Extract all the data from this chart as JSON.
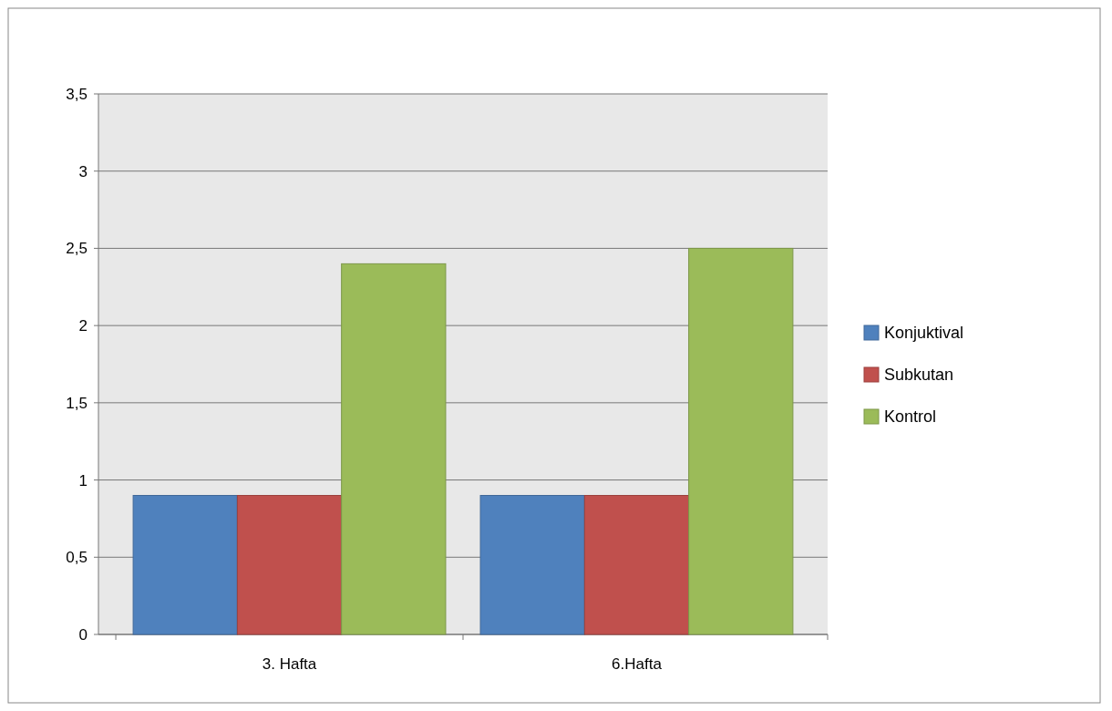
{
  "chart_data": {
    "type": "bar",
    "categories": [
      "3. Hafta",
      "6.Hafta"
    ],
    "series": [
      {
        "name": "Konjuktival",
        "color": "#4f81bd",
        "values": [
          0.9,
          0.9
        ]
      },
      {
        "name": "Subkutan",
        "color": "#c0504d",
        "values": [
          0.9,
          0.9
        ]
      },
      {
        "name": "Kontrol",
        "color": "#9bbb59",
        "values": [
          2.4,
          2.5
        ]
      }
    ],
    "ylim": [
      0,
      3.5
    ],
    "yticks": [
      0,
      {
        "value": 0.5,
        "label": "0,5"
      },
      1,
      {
        "value": 1.5,
        "label": "1,5"
      },
      2,
      {
        "value": 2.5,
        "label": "2,5"
      },
      3,
      {
        "value": 3.5,
        "label": "3,5"
      }
    ],
    "grid": "y",
    "legend": "right"
  }
}
